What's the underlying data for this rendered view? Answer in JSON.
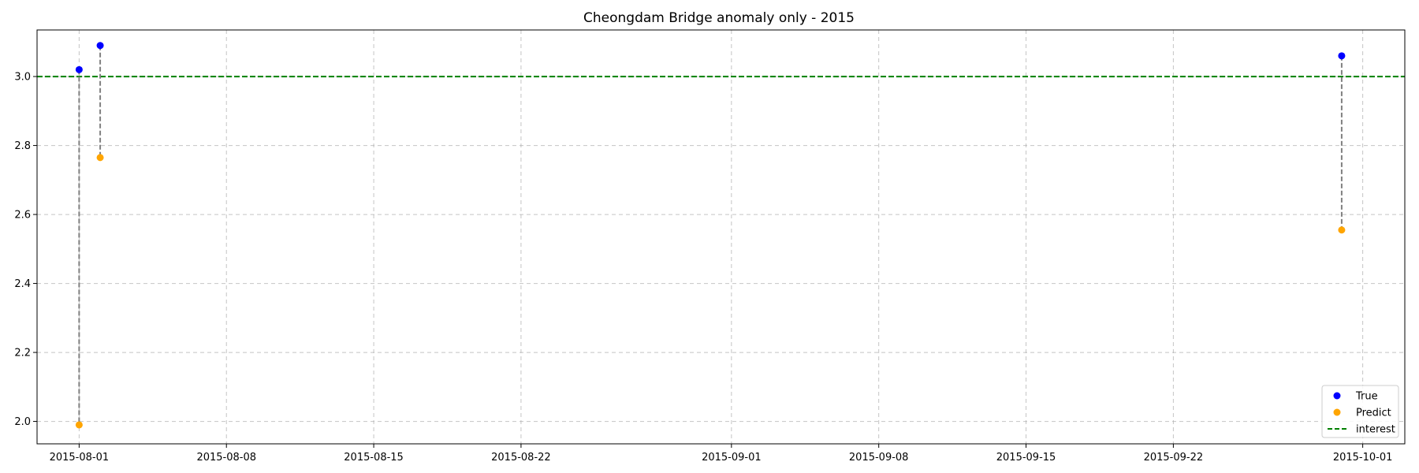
{
  "chart_data": {
    "type": "scatter",
    "title": "Cheongdam Bridge anomaly only - 2015",
    "xlabel": "",
    "ylabel": "",
    "x_axis_type": "date",
    "xlim": [
      "2015-07-30",
      "2015-10-03"
    ],
    "ylim": [
      1.935,
      3.135
    ],
    "x_ticks": [
      "2015-08-01",
      "2015-08-08",
      "2015-08-15",
      "2015-08-22",
      "2015-09-01",
      "2015-09-08",
      "2015-09-15",
      "2015-09-22",
      "2015-10-01"
    ],
    "y_ticks": [
      2.0,
      2.2,
      2.4,
      2.6,
      2.8,
      3.0
    ],
    "y_tick_labels": [
      "2.0",
      "2.2",
      "2.4",
      "2.6",
      "2.8",
      "3.0"
    ],
    "grid": true,
    "legend_position": "lower-right",
    "series": [
      {
        "name": "True",
        "color": "#0000ff",
        "points": [
          {
            "x": "2015-08-01",
            "y": 3.02
          },
          {
            "x": "2015-08-02",
            "y": 3.09
          },
          {
            "x": "2015-09-30",
            "y": 3.06
          }
        ]
      },
      {
        "name": "Predict",
        "color": "#ffa500",
        "points": [
          {
            "x": "2015-08-01",
            "y": 1.99
          },
          {
            "x": "2015-08-02",
            "y": 2.765
          },
          {
            "x": "2015-09-30",
            "y": 2.555
          }
        ]
      }
    ],
    "reference_line": {
      "name": "interest",
      "y": 3.0,
      "color": "#008000",
      "style": "dashed"
    },
    "connector_color": "#808080"
  }
}
